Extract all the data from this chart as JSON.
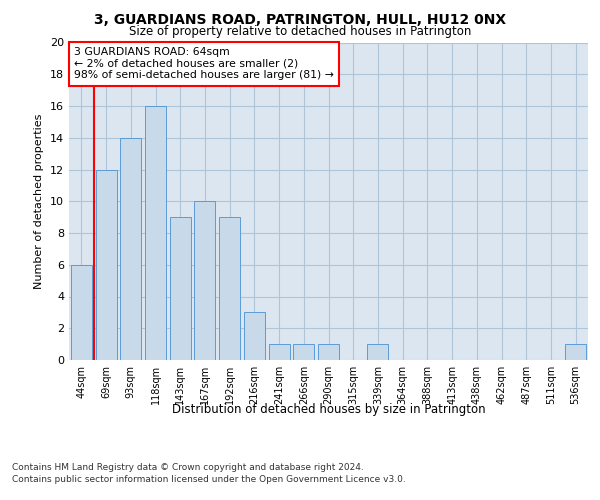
{
  "title": "3, GUARDIANS ROAD, PATRINGTON, HULL, HU12 0NX",
  "subtitle": "Size of property relative to detached houses in Patrington",
  "xlabel": "Distribution of detached houses by size in Patrington",
  "ylabel": "Number of detached properties",
  "categories": [
    "44sqm",
    "69sqm",
    "93sqm",
    "118sqm",
    "143sqm",
    "167sqm",
    "192sqm",
    "216sqm",
    "241sqm",
    "266sqm",
    "290sqm",
    "315sqm",
    "339sqm",
    "364sqm",
    "388sqm",
    "413sqm",
    "438sqm",
    "462sqm",
    "487sqm",
    "511sqm",
    "536sqm"
  ],
  "values": [
    6,
    12,
    14,
    16,
    9,
    10,
    9,
    3,
    1,
    1,
    1,
    0,
    1,
    0,
    0,
    0,
    0,
    0,
    0,
    0,
    1
  ],
  "bar_color": "#c8d9ea",
  "bar_edge_color": "#5b9bd5",
  "annotation_box_text": "3 GUARDIANS ROAD: 64sqm\n← 2% of detached houses are smaller (2)\n98% of semi-detached houses are larger (81) →",
  "annotation_box_color": "white",
  "annotation_box_edge_color": "red",
  "highlight_line_color": "red",
  "ylim": [
    0,
    20
  ],
  "yticks": [
    0,
    2,
    4,
    6,
    8,
    10,
    12,
    14,
    16,
    18,
    20
  ],
  "grid_color": "#b0c4d8",
  "background_color": "#dce6f1",
  "footer_line1": "Contains HM Land Registry data © Crown copyright and database right 2024.",
  "footer_line2": "Contains public sector information licensed under the Open Government Licence v3.0."
}
